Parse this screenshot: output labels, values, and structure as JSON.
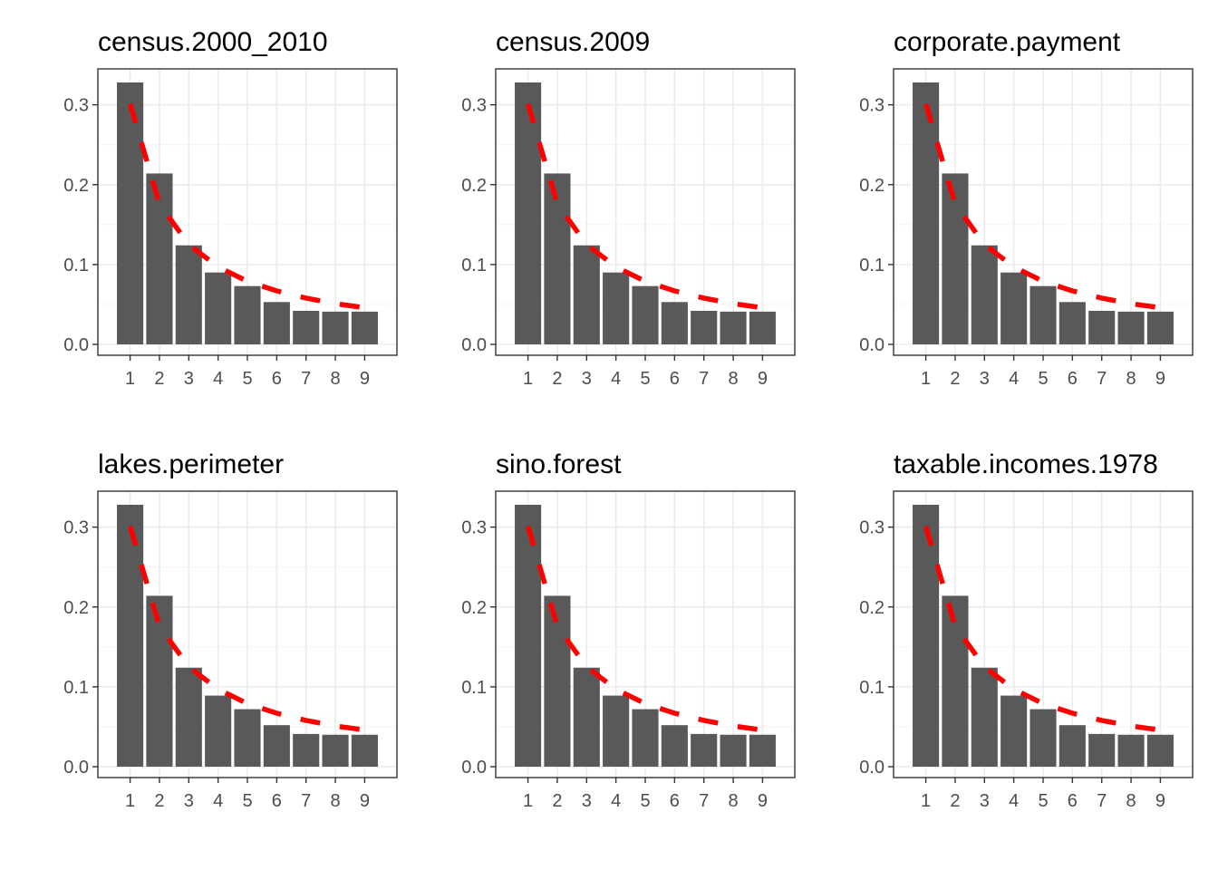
{
  "colors": {
    "bar": "#595959",
    "benford_line": "#ff0000",
    "grid_major": "#ebebeb",
    "grid_minor": "#f5f5f5",
    "panel_border": "#333333",
    "tick_text": "#4d4d4d"
  },
  "chart_data": [
    {
      "type": "bar",
      "title": "census.2000_2010",
      "categories": [
        "1",
        "2",
        "3",
        "4",
        "5",
        "6",
        "7",
        "8",
        "9"
      ],
      "series": [
        {
          "values": [
            0.328,
            0.214,
            0.124,
            0.09,
            0.073,
            0.053,
            0.042,
            0.041,
            0.041
          ]
        },
        {
          "values": [
            0.301,
            0.176,
            0.125,
            0.097,
            0.079,
            0.067,
            0.058,
            0.051,
            0.046
          ],
          "style": "dashed-line",
          "color": "#ff0000"
        }
      ],
      "yticks": [
        "0.0",
        "0.1",
        "0.2",
        "0.3"
      ],
      "ylim": [
        0,
        0.345
      ],
      "xlabel": "",
      "ylabel": "",
      "grid": true
    },
    {
      "type": "bar",
      "title": "census.2009",
      "categories": [
        "1",
        "2",
        "3",
        "4",
        "5",
        "6",
        "7",
        "8",
        "9"
      ],
      "series": [
        {
          "values": [
            0.328,
            0.214,
            0.124,
            0.09,
            0.073,
            0.053,
            0.042,
            0.041,
            0.041
          ]
        },
        {
          "values": [
            0.301,
            0.176,
            0.125,
            0.097,
            0.079,
            0.067,
            0.058,
            0.051,
            0.046
          ],
          "style": "dashed-line",
          "color": "#ff0000"
        }
      ],
      "yticks": [
        "0.0",
        "0.1",
        "0.2",
        "0.3"
      ],
      "ylim": [
        0,
        0.345
      ],
      "xlabel": "",
      "ylabel": "",
      "grid": true
    },
    {
      "type": "bar",
      "title": "corporate.payment",
      "categories": [
        "1",
        "2",
        "3",
        "4",
        "5",
        "6",
        "7",
        "8",
        "9"
      ],
      "series": [
        {
          "values": [
            0.328,
            0.214,
            0.124,
            0.09,
            0.073,
            0.053,
            0.042,
            0.041,
            0.041
          ]
        },
        {
          "values": [
            0.301,
            0.176,
            0.125,
            0.097,
            0.079,
            0.067,
            0.058,
            0.051,
            0.046
          ],
          "style": "dashed-line",
          "color": "#ff0000"
        }
      ],
      "yticks": [
        "0.0",
        "0.1",
        "0.2",
        "0.3"
      ],
      "ylim": [
        0,
        0.345
      ],
      "xlabel": "",
      "ylabel": "",
      "grid": true
    },
    {
      "type": "bar",
      "title": "lakes.perimeter",
      "categories": [
        "1",
        "2",
        "3",
        "4",
        "5",
        "6",
        "7",
        "8",
        "9"
      ],
      "series": [
        {
          "values": [
            0.328,
            0.214,
            0.124,
            0.089,
            0.072,
            0.052,
            0.041,
            0.04,
            0.04
          ]
        },
        {
          "values": [
            0.301,
            0.176,
            0.125,
            0.097,
            0.079,
            0.067,
            0.058,
            0.051,
            0.046
          ],
          "style": "dashed-line",
          "color": "#ff0000"
        }
      ],
      "yticks": [
        "0.0",
        "0.1",
        "0.2",
        "0.3"
      ],
      "ylim": [
        0,
        0.345
      ],
      "xlabel": "",
      "ylabel": "",
      "grid": true
    },
    {
      "type": "bar",
      "title": "sino.forest",
      "categories": [
        "1",
        "2",
        "3",
        "4",
        "5",
        "6",
        "7",
        "8",
        "9"
      ],
      "series": [
        {
          "values": [
            0.328,
            0.214,
            0.124,
            0.089,
            0.072,
            0.052,
            0.041,
            0.04,
            0.04
          ]
        },
        {
          "values": [
            0.301,
            0.176,
            0.125,
            0.097,
            0.079,
            0.067,
            0.058,
            0.051,
            0.046
          ],
          "style": "dashed-line",
          "color": "#ff0000"
        }
      ],
      "yticks": [
        "0.0",
        "0.1",
        "0.2",
        "0.3"
      ],
      "ylim": [
        0,
        0.345
      ],
      "xlabel": "",
      "ylabel": "",
      "grid": true
    },
    {
      "type": "bar",
      "title": "taxable.incomes.1978",
      "categories": [
        "1",
        "2",
        "3",
        "4",
        "5",
        "6",
        "7",
        "8",
        "9"
      ],
      "series": [
        {
          "values": [
            0.328,
            0.214,
            0.124,
            0.089,
            0.072,
            0.052,
            0.041,
            0.04,
            0.04
          ]
        },
        {
          "values": [
            0.301,
            0.176,
            0.125,
            0.097,
            0.079,
            0.067,
            0.058,
            0.051,
            0.046
          ],
          "style": "dashed-line",
          "color": "#ff0000"
        }
      ],
      "yticks": [
        "0.0",
        "0.1",
        "0.2",
        "0.3"
      ],
      "ylim": [
        0,
        0.345
      ],
      "xlabel": "",
      "ylabel": "",
      "grid": true
    }
  ]
}
